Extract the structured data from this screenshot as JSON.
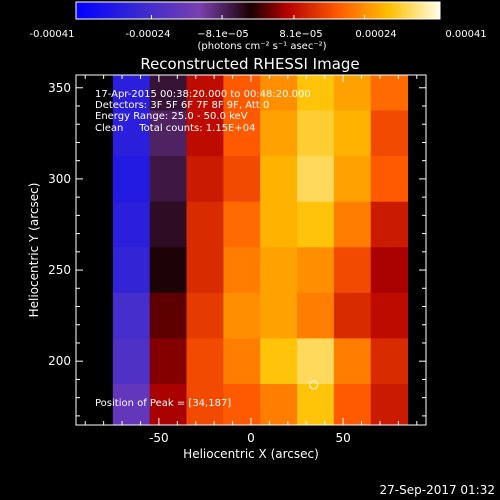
{
  "chart_data": {
    "type": "heatmap",
    "title": "Reconstructed RHESSI Image",
    "xlabel": "Heliocentric X (arcsec)",
    "ylabel": "Heliocentric Y (arcsec)",
    "xlim": [
      -95,
      95
    ],
    "ylim": [
      165,
      357
    ],
    "x_ticks": [
      -50,
      0,
      50
    ],
    "y_ticks": [
      200,
      250,
      300,
      350
    ],
    "colorbar": {
      "range": [
        -0.00041,
        0.00041
      ],
      "tick_values": [
        -0.00041,
        -0.00024,
        -8.1e-05,
        8.1e-05,
        0.00024,
        0.00041
      ],
      "tick_labels": [
        "-0.00041",
        "-0.00024",
        "−8.1e−05",
        "8.1e−05",
        "0.00024",
        "0.00041"
      ],
      "unit_label": "(photons cm⁻² s⁻¹ asec⁻²)"
    },
    "annotations": [
      "17-Apr-2015 00:38:20.000 to 00:48:20.000",
      "Detectors: 3F 5F 6F 7F 8F 9F, Att 0",
      "Energy Range: 25.0 - 50.0 keV",
      "Clean     Total counts: 1.15E+04"
    ],
    "peak_label": "Position of Peak = [34,187]",
    "peak": [
      34,
      187
    ],
    "grid_columns_x": [
      -65,
      -45,
      -25,
      -5,
      15,
      35,
      55,
      75
    ],
    "grid_rows_y": [
      350,
      325,
      300,
      275,
      250,
      225,
      200,
      175
    ],
    "values": [
      [
        -0.0003,
        -5e-05,
        8e-05,
        0.00018,
        0.00024,
        0.0003,
        0.00026,
        0.0002
      ],
      [
        -0.0003,
        -8e-05,
        8e-05,
        0.00018,
        0.00026,
        0.00032,
        0.00028,
        0.00016
      ],
      [
        -0.00032,
        -6e-05,
        0.0001,
        0.00016,
        0.00028,
        0.00034,
        0.00026,
        0.00018
      ],
      [
        -0.0003,
        -4e-05,
        0.00012,
        0.0002,
        0.00028,
        0.0003,
        0.00022,
        0.0001
      ],
      [
        -0.00028,
        -2e-05,
        0.00012,
        0.00022,
        0.00026,
        0.00024,
        0.00016,
        6e-05
      ],
      [
        -0.00024,
        2e-05,
        0.00014,
        0.00024,
        0.00026,
        0.00022,
        0.00012,
        8e-05
      ],
      [
        -0.00022,
        4e-05,
        0.00016,
        0.00022,
        0.0003,
        0.00034,
        0.00022,
        0.00012
      ],
      [
        -0.00018,
        6e-05,
        0.00016,
        0.00018,
        0.00022,
        0.0003,
        0.00018,
        0.0001
      ]
    ]
  },
  "footer": {
    "timestamp": "27-Sep-2017 01:32"
  }
}
